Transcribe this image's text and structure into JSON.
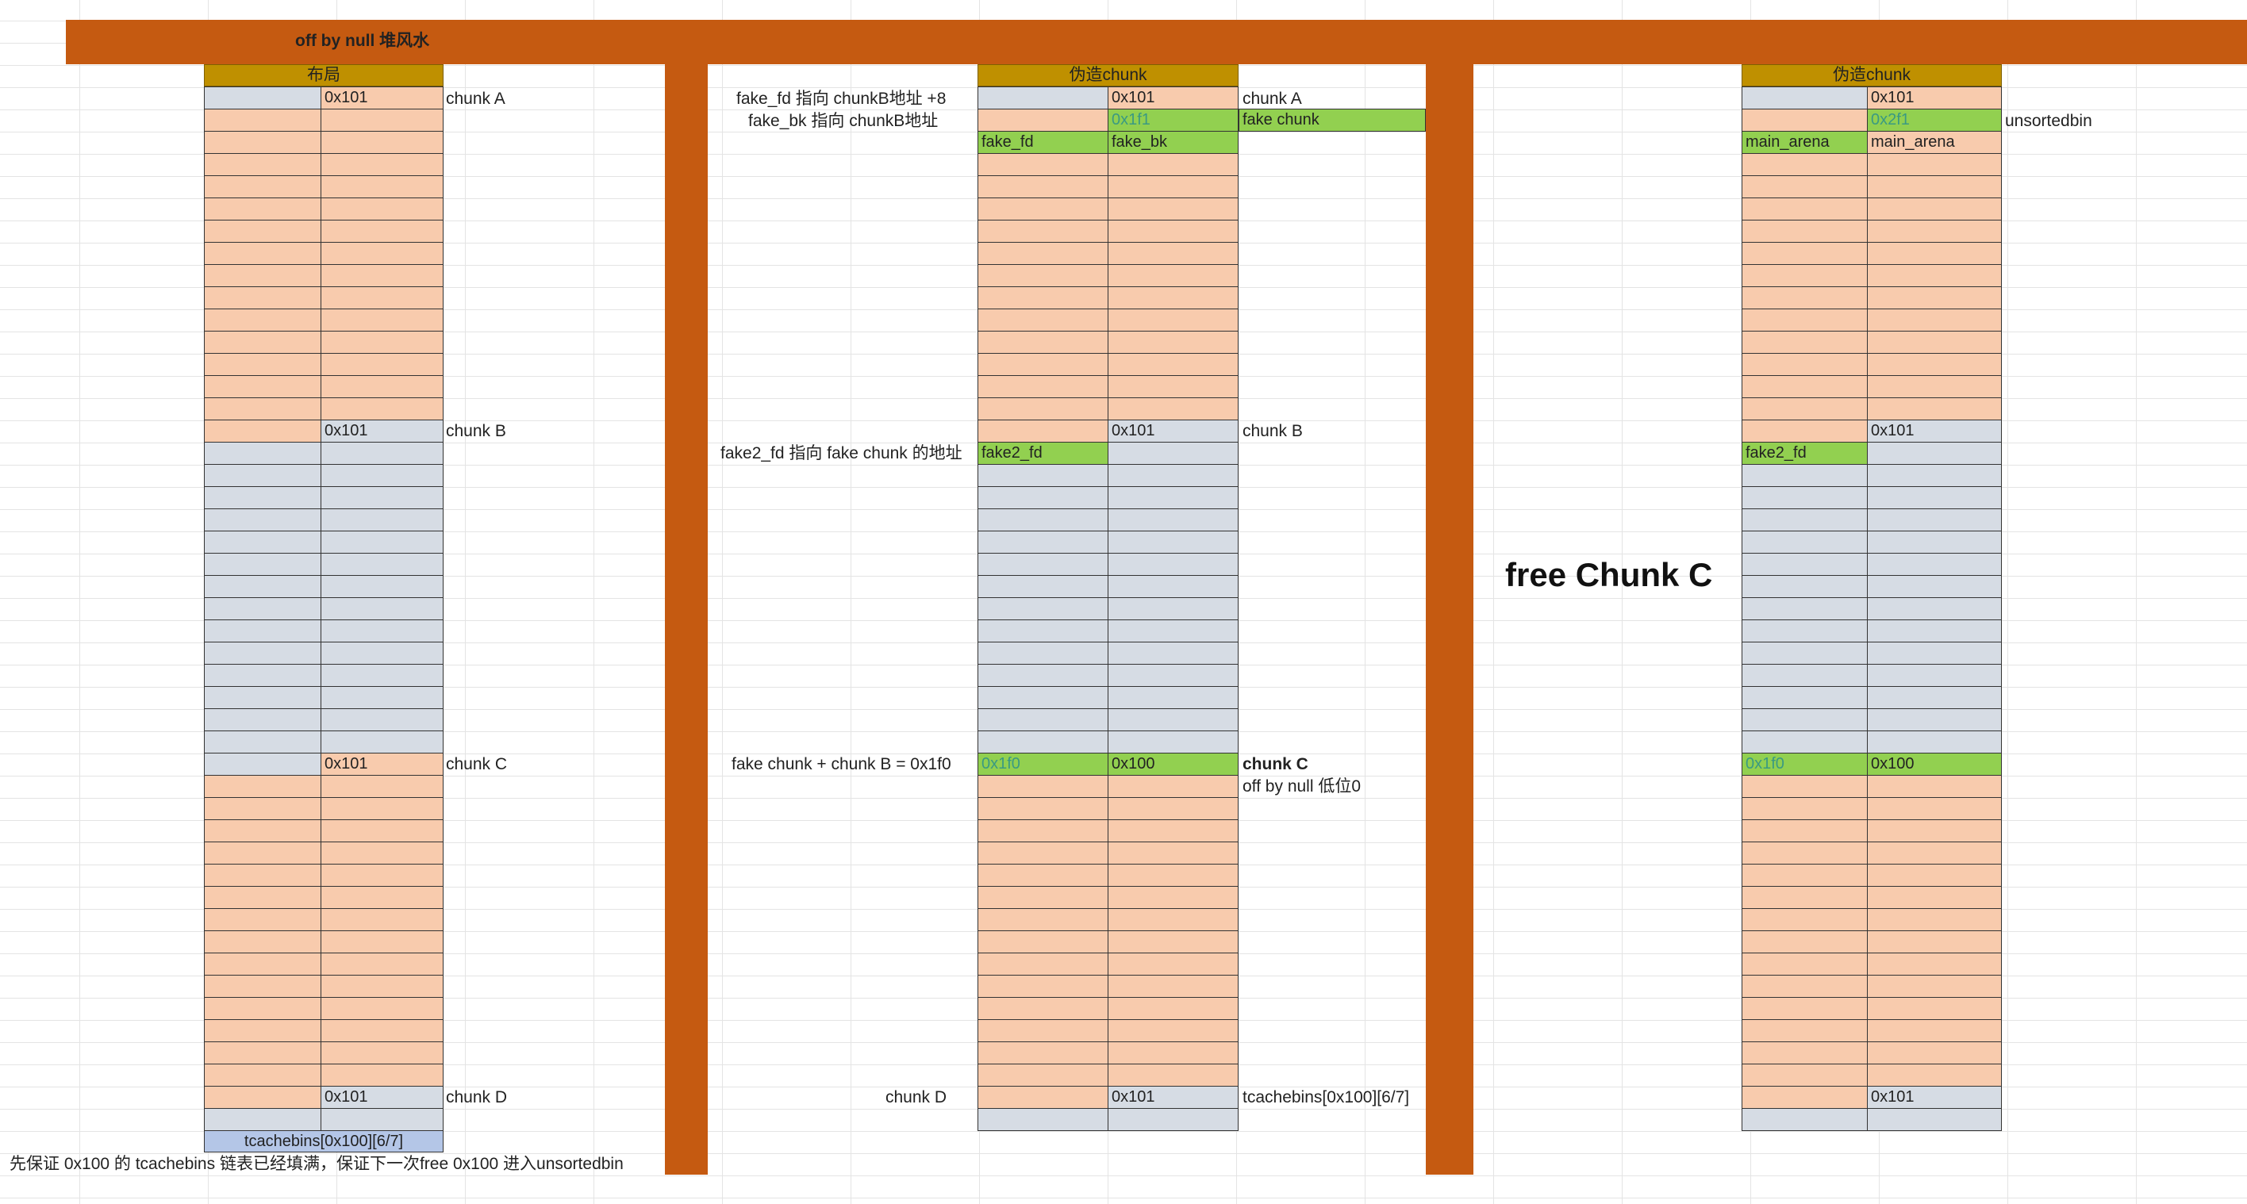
{
  "title": "off by null 堆风水",
  "col1": {
    "header": "布局",
    "chunk_a_size": "0x101",
    "chunk_a_label": "chunk A",
    "chunk_b_size": "0x101",
    "chunk_b_label": "chunk B",
    "chunk_c_size": "0x101",
    "chunk_c_label": "chunk C",
    "chunk_d_size": "0x101",
    "chunk_d_label": "chunk D",
    "tcache_label": "tcachebins[0x100][6/7]",
    "footer_note": "先保证 0x100 的 tcachebins 链表已经填满，保证下一次free 0x100 进入unsortedbin"
  },
  "col2": {
    "header": "伪造chunk",
    "note_fake_fd": "fake_fd 指向 chunkB地址 +8",
    "note_fake_bk": "fake_bk 指向 chunkB地址",
    "chunk_a_size": "0x101",
    "chunk_a_label": "chunk A",
    "fake_size": "0x1f1",
    "fake_chunk_label": "fake chunk",
    "fake_fd": "fake_fd",
    "fake_bk": "fake_bk",
    "note_fake2": "fake2_fd 指向 fake chunk 的地址",
    "chunk_b_size": "0x101",
    "chunk_b_label": "chunk B",
    "fake2_fd": "fake2_fd",
    "note_sum": "fake chunk + chunk B = 0x1f0",
    "prev_size": "0x1f0",
    "chunk_c_size": "0x100",
    "chunk_c_label": "chunk C",
    "off_by_null_note": "off by null 低位0",
    "note_chunk_d": "chunk D",
    "chunk_d_size": "0x101",
    "tcache_label": "tcachebins[0x100][6/7]"
  },
  "middle_action": "free Chunk C",
  "col3": {
    "header": "伪造chunk",
    "chunk_a_size": "0x101",
    "fake_size": "0x2f1",
    "unsortedbin_label": "unsortedbin",
    "fd": "main_arena",
    "bk": "main_arena",
    "chunk_b_size": "0x101",
    "fake2_fd": "fake2_fd",
    "prev_size": "0x1f0",
    "chunk_c_size": "0x100",
    "chunk_d_size": "0x101"
  }
}
